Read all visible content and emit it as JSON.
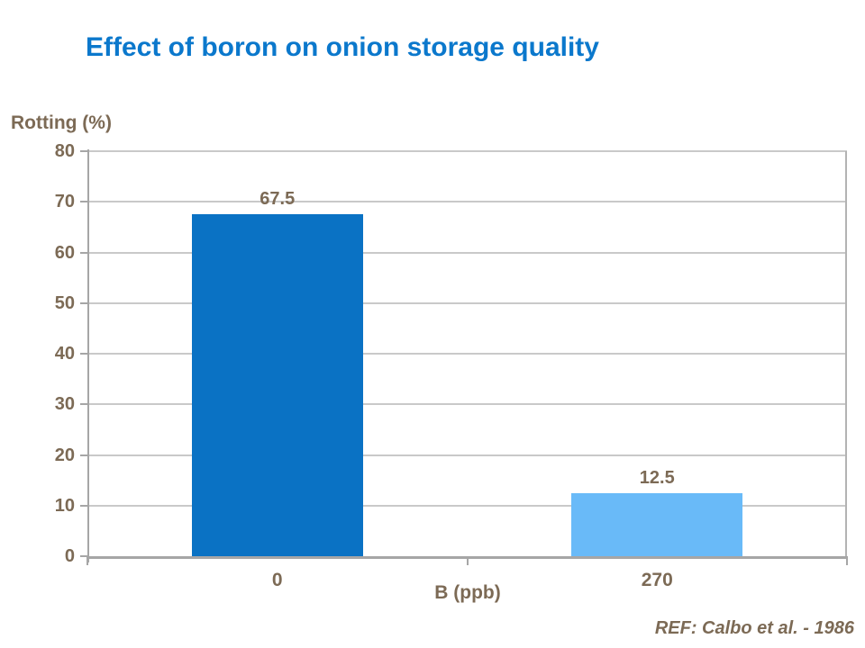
{
  "slide": {
    "title": "Effect of boron on onion storage quality",
    "reference": "REF: Calbo et al. - 1986"
  },
  "chart_data": {
    "type": "bar",
    "title": "",
    "ylabel": "Rotting (%)",
    "xlabel": "B (ppb)",
    "categories": [
      "0",
      "270"
    ],
    "series": [
      {
        "name": "Rotting (%)",
        "values": [
          67.5,
          12.5
        ],
        "data_labels": [
          "67.5",
          "12.5"
        ],
        "bar_colors": [
          "#0a72c4",
          "#69baf8"
        ]
      }
    ],
    "ylim": [
      0,
      80
    ],
    "ytick_interval": 10,
    "yticks": [
      0,
      10,
      20,
      30,
      40,
      50,
      60,
      70,
      80
    ],
    "grid": true,
    "legend": false,
    "data_labels_shown": true
  },
  "colors": {
    "title_text": "#0b78cc",
    "chart_text": "#7c6a55",
    "gridline": "#c9c9c9",
    "axis": "#a6a6a6",
    "plot_right_border": "#b3b3b3"
  }
}
